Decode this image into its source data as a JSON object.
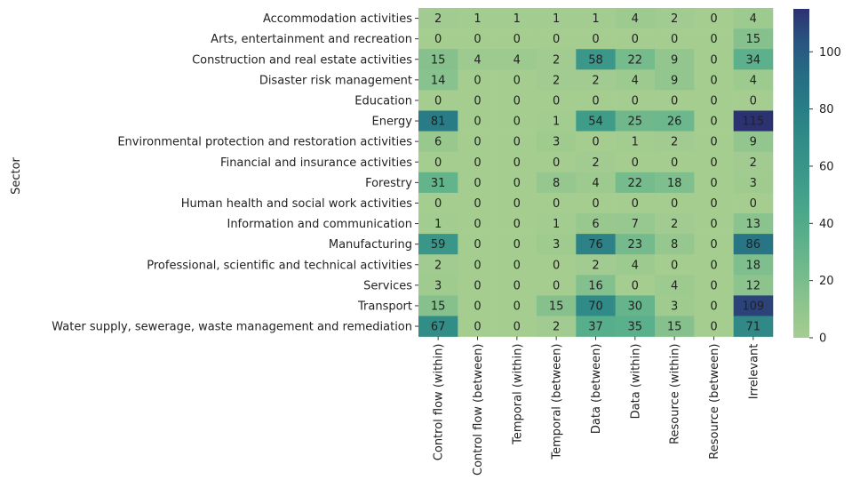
{
  "chart_data": {
    "type": "heatmap",
    "ylabel": "Sector",
    "xlabel": "",
    "rows": [
      "Accommodation activities",
      "Arts, entertainment and recreation",
      "Construction and real estate activities",
      "Disaster risk management",
      "Education",
      "Energy",
      "Environmental protection and restoration activities",
      "Financial and insurance activities",
      "Forestry",
      "Human health and social work activities",
      "Information and communication",
      "Manufacturing",
      "Professional, scientific and technical activities",
      "Services",
      "Transport",
      "Water supply, sewerage, waste management and remediation"
    ],
    "columns": [
      "Control flow (within)",
      "Control flow (between)",
      "Temporal (within)",
      "Temporal (between)",
      "Data (between)",
      "Data (within)",
      "Resource (within)",
      "Resource (between)",
      "Irrelevant"
    ],
    "values": [
      [
        2,
        1,
        1,
        1,
        1,
        4,
        2,
        0,
        4
      ],
      [
        0,
        0,
        0,
        0,
        0,
        0,
        0,
        0,
        15
      ],
      [
        15,
        4,
        4,
        2,
        58,
        22,
        9,
        0,
        34
      ],
      [
        14,
        0,
        0,
        2,
        2,
        4,
        9,
        0,
        4
      ],
      [
        0,
        0,
        0,
        0,
        0,
        0,
        0,
        0,
        0
      ],
      [
        81,
        0,
        0,
        1,
        54,
        25,
        26,
        0,
        115
      ],
      [
        6,
        0,
        0,
        3,
        0,
        1,
        2,
        0,
        9
      ],
      [
        0,
        0,
        0,
        0,
        2,
        0,
        0,
        0,
        2
      ],
      [
        31,
        0,
        0,
        8,
        4,
        22,
        18,
        0,
        3
      ],
      [
        0,
        0,
        0,
        0,
        0,
        0,
        0,
        0,
        0
      ],
      [
        1,
        0,
        0,
        1,
        6,
        7,
        2,
        0,
        13
      ],
      [
        59,
        0,
        0,
        3,
        76,
        23,
        8,
        0,
        86
      ],
      [
        2,
        0,
        0,
        0,
        2,
        4,
        0,
        0,
        18
      ],
      [
        3,
        0,
        0,
        0,
        16,
        0,
        4,
        0,
        12
      ],
      [
        15,
        0,
        0,
        15,
        70,
        30,
        3,
        0,
        109
      ],
      [
        67,
        0,
        0,
        2,
        37,
        35,
        15,
        0,
        71
      ]
    ],
    "colormap": "crest",
    "color_range": [
      0,
      115
    ],
    "colorbar_ticks": [
      0,
      20,
      40,
      60,
      80,
      100
    ],
    "annotated": true
  }
}
